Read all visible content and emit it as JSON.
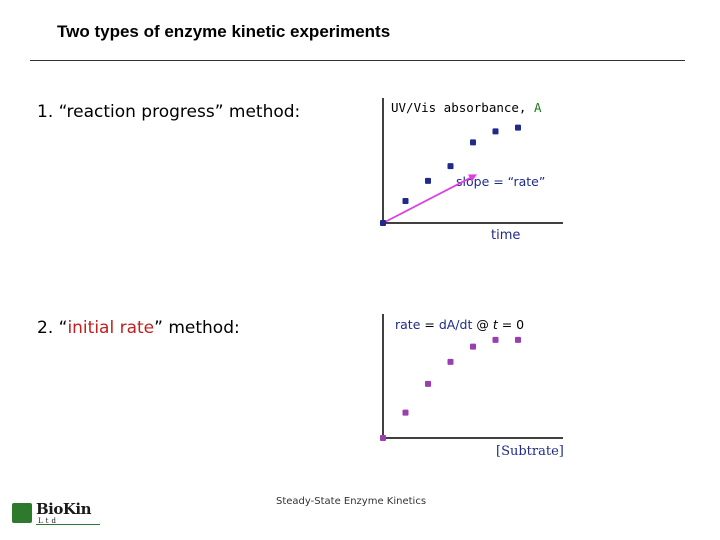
{
  "slide": {
    "title": "Two types of enzyme kinetic experiments",
    "footer": "Steady-State Enzyme Kinetics",
    "logo_text": "BioKin",
    "logo_sub": "Ltd"
  },
  "methods": [
    {
      "label_prefix": "1. “reaction progress” method:",
      "highlight": "",
      "label_suffix": ""
    },
    {
      "label_prefix": "2. “",
      "highlight": "initial rate",
      "label_suffix": "” method:"
    }
  ],
  "chart_data": [
    {
      "type": "scatter",
      "ylabel": "UV/Vis absorbance, A",
      "ylabel_parts": [
        "UV/Vis absorbance, ",
        "A"
      ],
      "xlabel": "time",
      "annotation": "slope = “rate”",
      "colors": {
        "points": "#1f2a8a",
        "slope": "#dd3fe0",
        "axis_label": "#1f2a8a"
      },
      "x": [
        0,
        1,
        2,
        3,
        4,
        5,
        6
      ],
      "y": [
        0,
        1.2,
        2.3,
        3.1,
        4.4,
        5.0,
        5.2
      ],
      "xlim": [
        0,
        8
      ],
      "ylim": [
        0,
        6
      ],
      "slope_line": {
        "x": [
          0,
          4.1
        ],
        "y": [
          0,
          2.6
        ]
      }
    },
    {
      "type": "scatter",
      "ylabel": "rate = dA/dt @ t = 0",
      "ylabel_parts": [
        "rate",
        " = ",
        "dA/dt",
        " @ ",
        "t",
        " = 0"
      ],
      "xlabel": "[Subtrate]",
      "colors": {
        "points": "#9b3fb0",
        "axis_label": "#1f2a8a"
      },
      "x": [
        0,
        1,
        2,
        3,
        4,
        5,
        6
      ],
      "y": [
        0,
        1.5,
        3.2,
        4.5,
        5.4,
        5.8,
        5.8
      ],
      "xlim": [
        0,
        8
      ],
      "ylim": [
        0,
        6.5
      ]
    }
  ]
}
